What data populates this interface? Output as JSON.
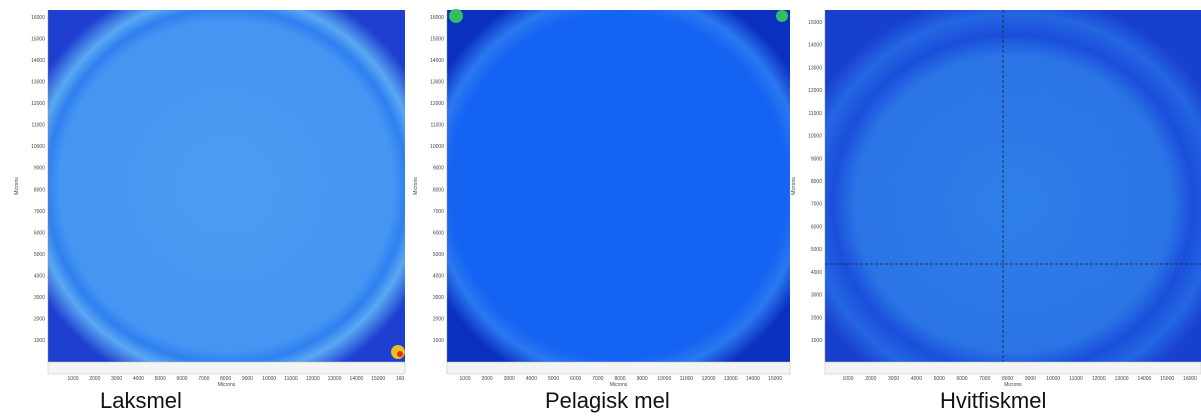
{
  "panels": [
    {
      "caption": "Laksmel",
      "y_axis_label": "Microns",
      "x_axis_label": "Microns",
      "y_ticks": [
        "16000",
        "15000",
        "14000",
        "13000",
        "12000",
        "11000",
        "10000",
        "9000",
        "8000",
        "7000",
        "6000",
        "5000",
        "4000",
        "3000",
        "2000",
        "1000"
      ],
      "x_ticks": [
        "1000",
        "2000",
        "3000",
        "4000",
        "5000",
        "6000",
        "7000",
        "8000",
        "9000",
        "10000",
        "11000",
        "12000",
        "13000",
        "14000",
        "15000",
        "160"
      ]
    },
    {
      "caption": "Pelagisk mel",
      "y_axis_label": "Microns",
      "x_axis_label": "Microns",
      "y_ticks": [
        "16000",
        "15000",
        "14000",
        "13000",
        "12000",
        "11000",
        "10000",
        "9000",
        "8000",
        "7000",
        "6000",
        "5000",
        "4000",
        "3000",
        "2000",
        "1000"
      ],
      "x_ticks": [
        "1000",
        "2000",
        "3000",
        "4000",
        "5000",
        "6000",
        "7000",
        "8000",
        "9000",
        "10000",
        "11000",
        "12000",
        "13000",
        "14000",
        "15000"
      ]
    },
    {
      "caption": "Hvitfiskmel",
      "y_axis_label": "Microns",
      "x_axis_label": "Microns",
      "y_ticks": [
        "15000",
        "14000",
        "13000",
        "12000",
        "11000",
        "10000",
        "9000",
        "8000",
        "7000",
        "6000",
        "5000",
        "4000",
        "3000",
        "2000",
        "1000"
      ],
      "x_ticks": [
        "1000",
        "2000",
        "3000",
        "4000",
        "5000",
        "6000",
        "7000",
        "8000",
        "9000",
        "10000",
        "11000",
        "12000",
        "13000",
        "14000",
        "15000",
        "16000"
      ]
    }
  ]
}
